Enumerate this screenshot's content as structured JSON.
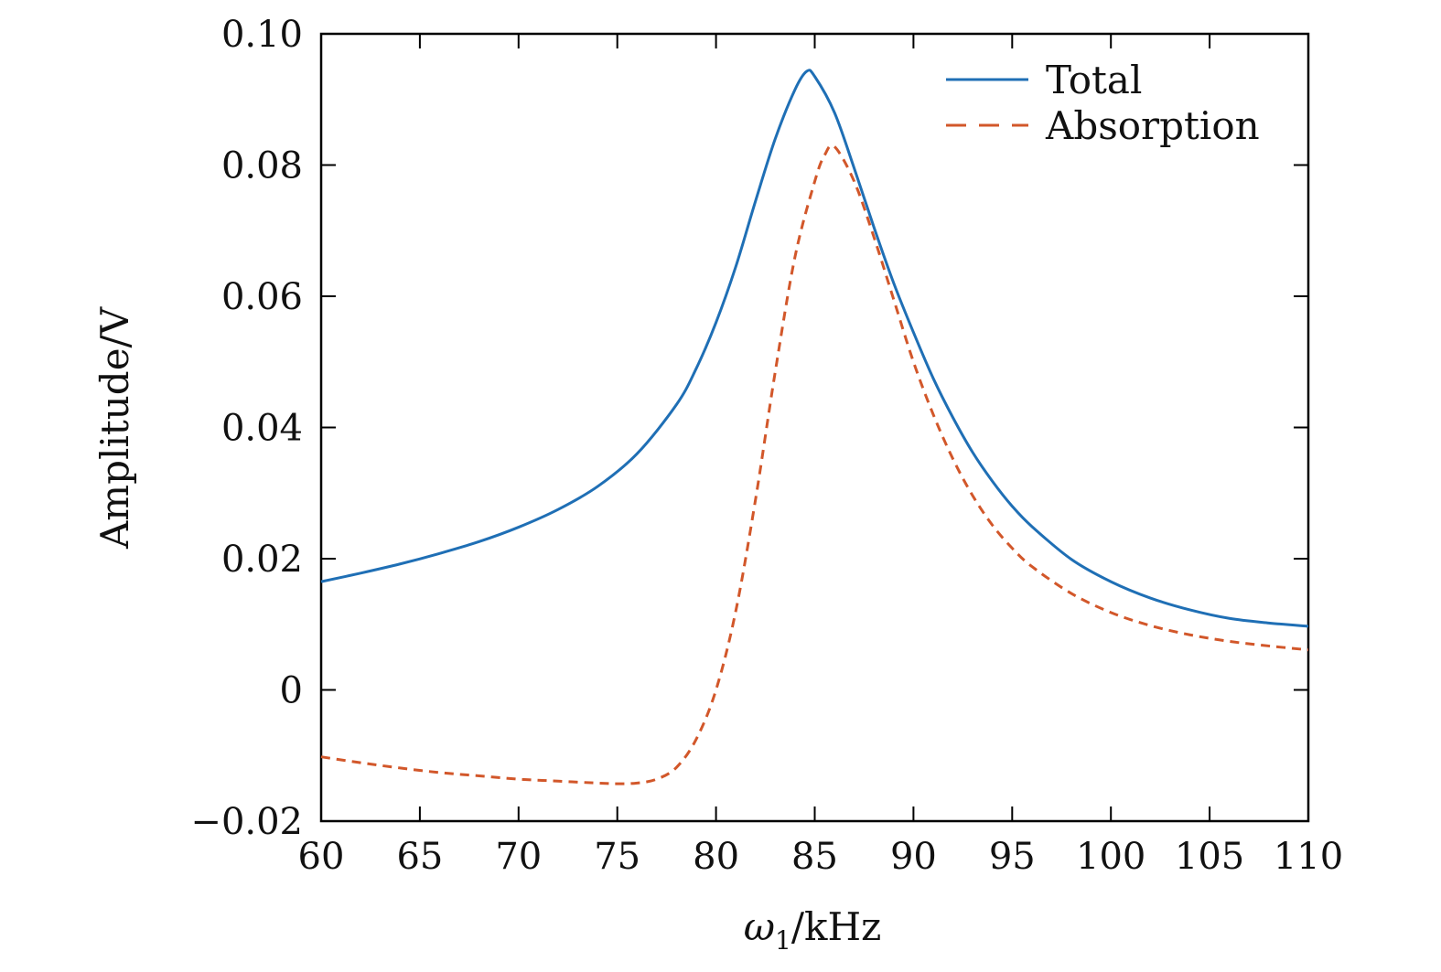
{
  "chart_data": {
    "type": "line",
    "xlabel": "ω1/kHz",
    "xlabel_symbol": "ω",
    "xlabel_subscript": "1",
    "xlabel_unit": "/kHz",
    "ylabel": "Amplitude/V",
    "xlim": [
      60,
      110
    ],
    "ylim": [
      -0.02,
      0.1
    ],
    "xticks": [
      60,
      65,
      70,
      75,
      80,
      85,
      90,
      95,
      100,
      105,
      110
    ],
    "xtick_labels": [
      "60",
      "65",
      "70",
      "75",
      "80",
      "85",
      "90",
      "95",
      "100",
      "105",
      "110"
    ],
    "yticks": [
      -0.02,
      0,
      0.02,
      0.04,
      0.06,
      0.08,
      0.1
    ],
    "ytick_labels": [
      "−0.02",
      "0",
      "0.02",
      "0.04",
      "0.06",
      "0.08",
      "0.10"
    ],
    "grid": false,
    "legend_position": "top-right",
    "series": [
      {
        "name": "Total",
        "color": "#1f6fb5",
        "style": "solid",
        "x": [
          60,
          62,
          64,
          66,
          68,
          70,
          72,
          74,
          76,
          78,
          79,
          80,
          81,
          82,
          83,
          84,
          84.6,
          85,
          86,
          87,
          88,
          89,
          90,
          91,
          92,
          93,
          94,
          95,
          96,
          98,
          100,
          102,
          104,
          106,
          108,
          110
        ],
        "y": [
          0.0165,
          0.0178,
          0.0192,
          0.0208,
          0.0226,
          0.0248,
          0.0275,
          0.031,
          0.036,
          0.0435,
          0.049,
          0.056,
          0.0645,
          0.0745,
          0.084,
          0.0915,
          0.0943,
          0.0935,
          0.088,
          0.0795,
          0.0705,
          0.062,
          0.0545,
          0.0475,
          0.0415,
          0.0362,
          0.0318,
          0.028,
          0.0249,
          0.0199,
          0.0165,
          0.014,
          0.0122,
          0.0109,
          0.0102,
          0.0097
        ]
      },
      {
        "name": "Absorption",
        "color": "#d2572a",
        "style": "dashed",
        "x": [
          60,
          62,
          64,
          66,
          68,
          70,
          72,
          74,
          75,
          76,
          77,
          78,
          79,
          80,
          81,
          82,
          83,
          84,
          85,
          85.5,
          86,
          87,
          88,
          89,
          90,
          91,
          92,
          93,
          94,
          95,
          96,
          98,
          100,
          102,
          104,
          106,
          108,
          110
        ],
        "y": [
          -0.0102,
          -0.0111,
          -0.0119,
          -0.0126,
          -0.0131,
          -0.0136,
          -0.0139,
          -0.0142,
          -0.0143,
          -0.0142,
          -0.0136,
          -0.0118,
          -0.0075,
          0.0,
          0.012,
          0.029,
          0.0485,
          0.066,
          0.0775,
          0.0815,
          0.0828,
          0.0775,
          0.069,
          0.0595,
          0.05,
          0.042,
          0.0352,
          0.0296,
          0.0251,
          0.0216,
          0.0188,
          0.0147,
          0.0118,
          0.0098,
          0.0084,
          0.0074,
          0.0067,
          0.0061
        ]
      }
    ]
  }
}
